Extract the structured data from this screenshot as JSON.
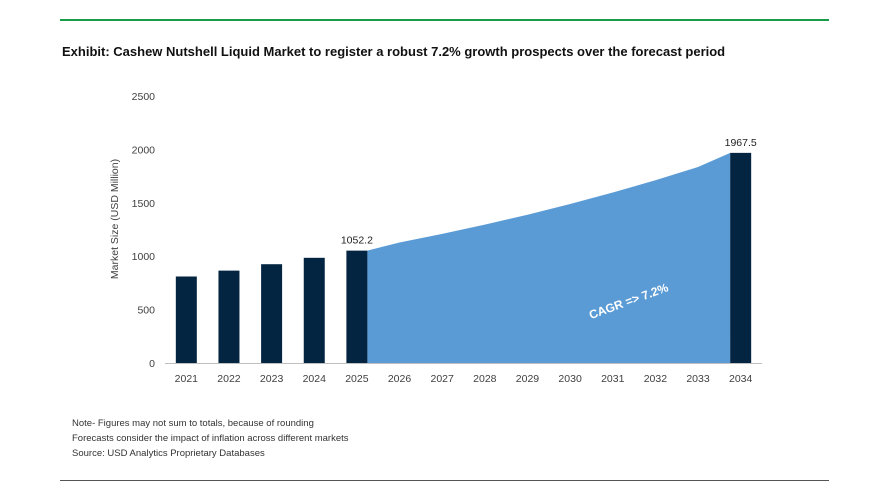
{
  "title": "Exhibit: Cashew Nutshell Liquid Market to register a robust 7.2% growth prospects over the forecast period",
  "chart_data": {
    "type": "bar",
    "title": "Exhibit: Cashew Nutshell Liquid Market to register a robust 7.2% growth prospects over the forecast period",
    "xlabel": "",
    "ylabel": "Market Size (USD Million)",
    "ylim": [
      0,
      2500
    ],
    "yticks": [
      0,
      500,
      1000,
      1500,
      2000,
      2500
    ],
    "grid": false,
    "categories": [
      "2021",
      "2022",
      "2023",
      "2024",
      "2025",
      "2026",
      "2027",
      "2028",
      "2029",
      "2030",
      "2031",
      "2032",
      "2033",
      "2034"
    ],
    "bars": [
      {
        "x": "2021",
        "value": 810
      },
      {
        "x": "2022",
        "value": 865
      },
      {
        "x": "2023",
        "value": 925
      },
      {
        "x": "2024",
        "value": 985
      },
      {
        "x": "2025",
        "value": 1052.2
      },
      {
        "x": "2034",
        "value": 1967.5
      }
    ],
    "area": {
      "x": [
        "2025",
        "2026",
        "2027",
        "2028",
        "2029",
        "2030",
        "2031",
        "2032",
        "2033",
        "2034"
      ],
      "values": [
        1052.2,
        1128,
        1209,
        1296,
        1389,
        1489,
        1596,
        1711,
        1835,
        1967.5
      ]
    },
    "data_labels": [
      {
        "x": "2025",
        "text": "1052.2"
      },
      {
        "x": "2034",
        "text": "1967.5"
      }
    ],
    "annotation": "CAGR =>  7.2%",
    "colors": {
      "bar": "#032542",
      "area": "#5b9bd5",
      "axis": "#bfbfbf"
    }
  },
  "notes": [
    "Note- Figures may not sum to totals, because of rounding",
    "Forecasts consider the impact of inflation across different markets",
    "Source: USD Analytics Proprietary Databases"
  ]
}
